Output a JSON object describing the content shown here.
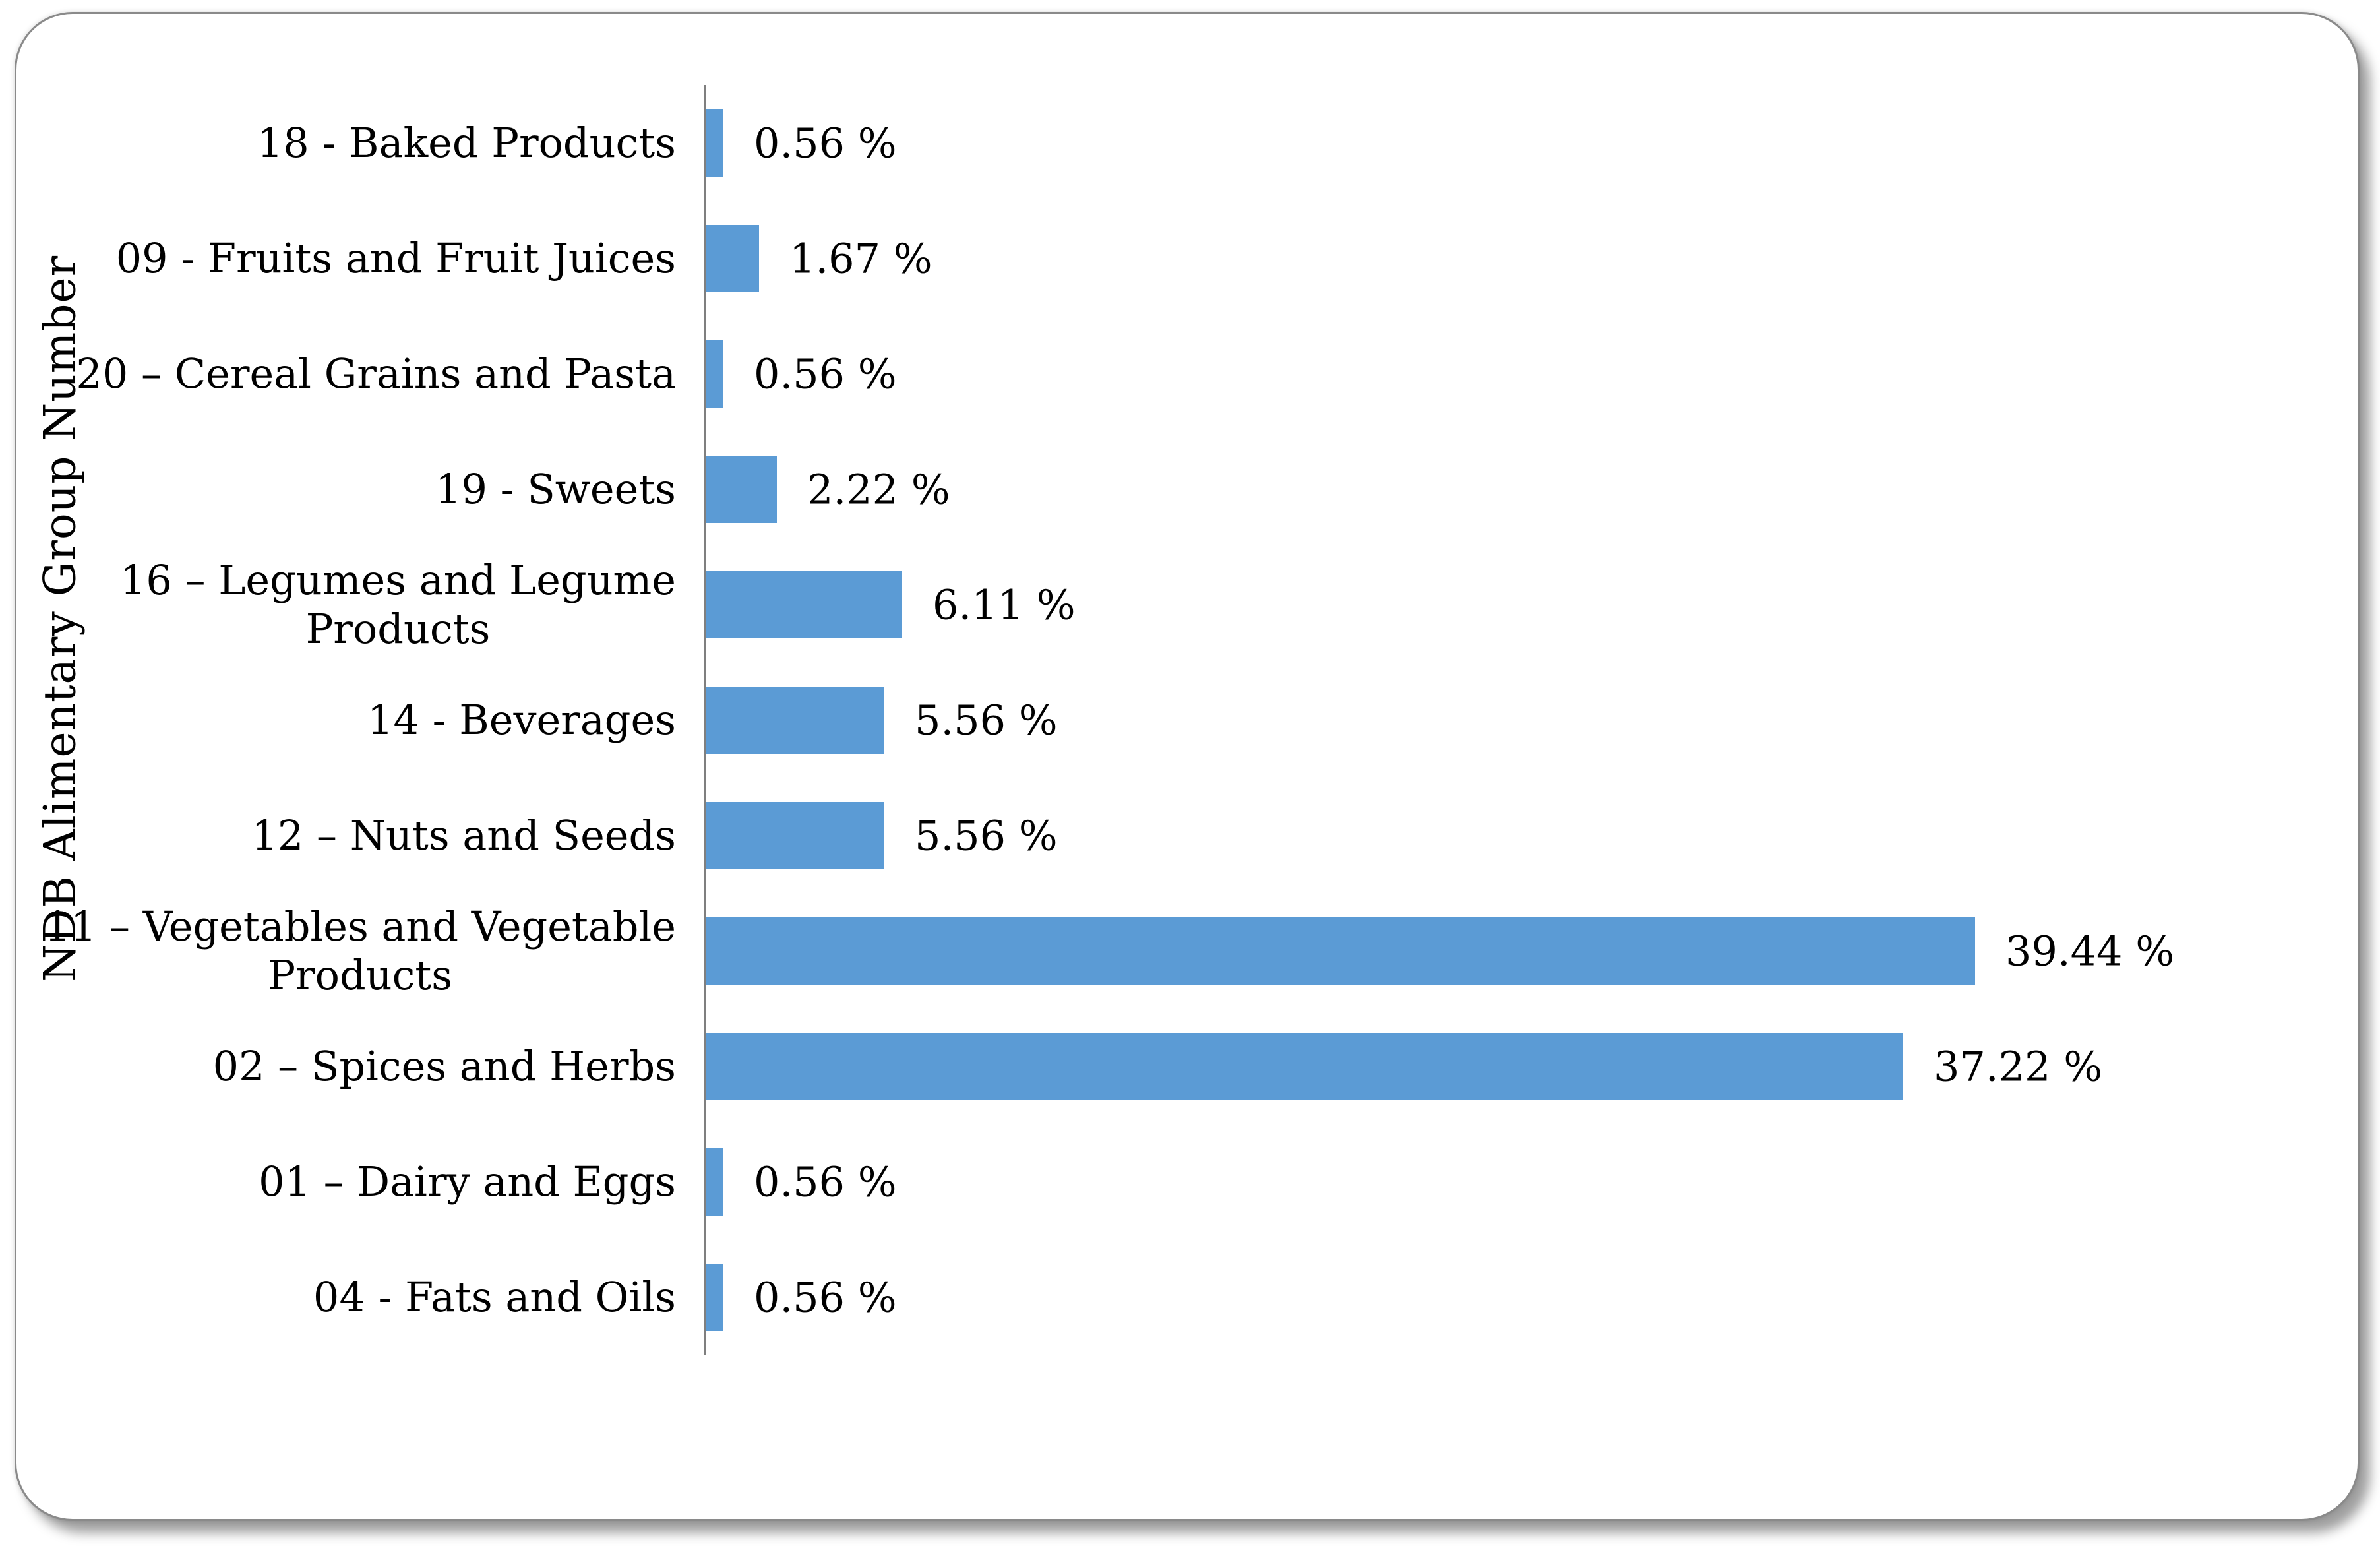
{
  "chart_data": {
    "type": "bar",
    "orientation": "horizontal",
    "title": "",
    "xlabel": "",
    "ylabel": "NDB Alimentary Group Number",
    "grid": false,
    "legend": false,
    "xlim": [
      0,
      50
    ],
    "bar_color": "#5B9BD5",
    "axis_color": "#7f7f7f",
    "categories": [
      "18 - Baked Products",
      "09 - Fruits and Fruit Juices",
      "20 – Cereal Grains and Pasta",
      "19 - Sweets",
      "16 – Legumes and Legume\nProducts",
      "14 - Beverages",
      "12 – Nuts and Seeds",
      "11 – Vegetables and Vegetable\nProducts",
      "02 – Spices and Herbs",
      "01 – Dairy and Eggs",
      "04 - Fats and Oils"
    ],
    "values": [
      0.56,
      1.67,
      0.56,
      2.22,
      6.11,
      5.56,
      5.56,
      39.44,
      37.22,
      0.56,
      0.56
    ],
    "value_labels": [
      "0.56 %",
      "1.67 %",
      "0.56 %",
      "2.22 %",
      "6.11 %",
      "5.56 %",
      "5.56 %",
      "39.44 %",
      "37.22 %",
      "0.56 %",
      "0.56 %"
    ]
  }
}
